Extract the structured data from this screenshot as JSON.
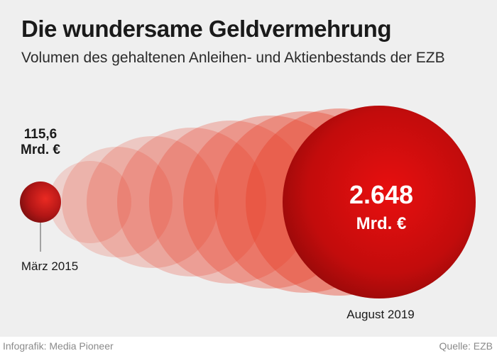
{
  "title": "Die wundersame Geldvermehrung",
  "subtitle": "Volumen des gehaltenen Anleihen- und Aktienbestands der EZB",
  "chart_data": {
    "type": "bubble",
    "start": {
      "date": "März 2015",
      "value": 115.6,
      "value_label": "115,6",
      "unit": "Mrd. €"
    },
    "end": {
      "date": "August 2019",
      "value": 2648,
      "value_label": "2.648",
      "unit": "Mrd. €"
    }
  },
  "colors": {
    "start_bubble": "#a81818",
    "end_bubble": "#c81010",
    "growth_bubbles": "#e8402a",
    "background": "#efefef"
  },
  "footer": {
    "credit": "Infografik: Media Pioneer",
    "source": "Quelle: EZB"
  }
}
